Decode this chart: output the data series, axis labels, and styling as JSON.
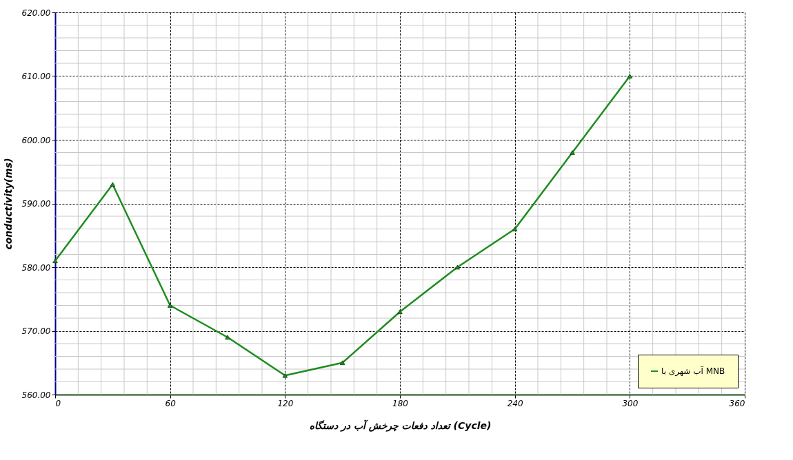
{
  "chart_data": {
    "type": "line",
    "xlabel": "تعداد  دفعات چرخش آب در دستگاه (Cycle)",
    "ylabel": "conductivity(ms)",
    "x": [
      0,
      30,
      60,
      90,
      120,
      150,
      180,
      210,
      240,
      270,
      300
    ],
    "series": [
      {
        "name": "آب شهری با MNB",
        "color": "#1e8c1e",
        "values": [
          581,
          593,
          574,
          569,
          563,
          565,
          573,
          580,
          586,
          598,
          610
        ]
      }
    ],
    "xlim": [
      0,
      360
    ],
    "xticks": [
      0,
      60,
      120,
      180,
      240,
      300,
      360
    ],
    "ylim": [
      560,
      620
    ],
    "yticks": [
      {
        "value": 560,
        "label": "560.00"
      },
      {
        "value": 570,
        "label": "570.00"
      },
      {
        "value": 580,
        "label": "580.00"
      },
      {
        "value": 590,
        "label": "590.00"
      },
      {
        "value": 600,
        "label": "600.00"
      },
      {
        "value": 610,
        "label": "610.00"
      },
      {
        "value": 620,
        "label": "620.00"
      }
    ],
    "grid": true,
    "legend": "bottom right",
    "marker": "triangle",
    "line_style": "solid"
  }
}
